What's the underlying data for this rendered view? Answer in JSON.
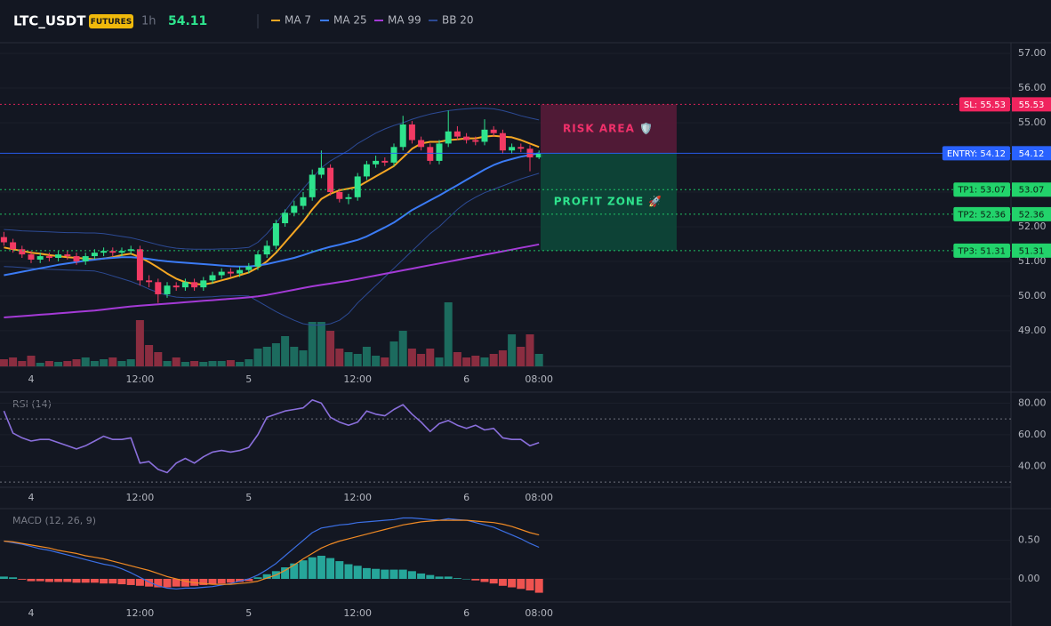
{
  "chart_data": [
    {
      "type": "candlestick",
      "title": "LTC_USDT",
      "badge": "FUTURES",
      "interval": "1h",
      "last_price": 54.11,
      "categories": [
        null,
        null,
        null,
        "4",
        null,
        null,
        null,
        null,
        null,
        null,
        null,
        null,
        null,
        null,
        null,
        "12:00",
        null,
        null,
        null,
        null,
        null,
        null,
        null,
        null,
        null,
        null,
        null,
        "5",
        null,
        null,
        null,
        null,
        null,
        null,
        null,
        null,
        null,
        null,
        null,
        "12:00",
        null,
        null,
        null,
        null,
        null,
        null,
        null,
        null,
        null,
        null,
        null,
        "6",
        null,
        null,
        null,
        null,
        null,
        null,
        null,
        "08:00"
      ],
      "open": [
        51.7,
        51.55,
        51.35,
        51.2,
        51.05,
        51.15,
        51.1,
        51.2,
        51.15,
        51.0,
        51.15,
        51.25,
        51.3,
        51.25,
        51.3,
        51.35,
        50.45,
        50.4,
        50.05,
        50.3,
        50.25,
        50.4,
        50.25,
        50.45,
        50.6,
        50.7,
        50.65,
        50.75,
        50.85,
        51.2,
        51.45,
        52.1,
        52.4,
        52.6,
        52.85,
        53.5,
        53.7,
        53.0,
        52.8,
        52.85,
        53.45,
        53.8,
        53.9,
        53.85,
        54.3,
        54.95,
        54.5,
        54.3,
        53.9,
        54.4,
        54.75,
        54.6,
        54.5,
        54.45,
        54.8,
        54.7,
        54.2,
        54.3,
        54.25,
        54.0
      ],
      "high": [
        51.85,
        51.65,
        51.45,
        51.3,
        51.25,
        51.25,
        51.3,
        51.3,
        51.25,
        51.25,
        51.35,
        51.4,
        51.4,
        51.4,
        51.45,
        51.45,
        50.6,
        50.5,
        50.4,
        50.4,
        50.5,
        50.5,
        50.55,
        50.7,
        50.8,
        50.8,
        50.85,
        50.95,
        51.3,
        51.6,
        52.2,
        52.5,
        52.75,
        53.0,
        53.65,
        54.2,
        53.8,
        53.1,
        52.95,
        53.55,
        53.9,
        54.05,
        54.0,
        54.4,
        55.2,
        55.05,
        54.6,
        54.4,
        54.5,
        55.35,
        54.9,
        54.7,
        54.6,
        55.1,
        54.9,
        54.8,
        54.4,
        54.4,
        54.35,
        54.2
      ],
      "low": [
        51.45,
        51.25,
        51.1,
        50.95,
        50.95,
        51.0,
        51.0,
        51.05,
        50.9,
        50.9,
        51.05,
        51.15,
        51.15,
        51.15,
        51.2,
        50.3,
        50.25,
        49.8,
        49.95,
        50.15,
        50.15,
        50.15,
        50.15,
        50.35,
        50.5,
        50.55,
        50.55,
        50.65,
        50.75,
        51.1,
        51.35,
        52.0,
        52.3,
        52.5,
        52.75,
        53.4,
        52.9,
        52.7,
        52.65,
        52.75,
        53.35,
        53.7,
        53.75,
        53.75,
        54.2,
        54.4,
        54.2,
        53.8,
        53.8,
        54.3,
        54.5,
        54.4,
        54.35,
        54.35,
        54.6,
        54.1,
        54.1,
        54.15,
        53.6,
        53.95
      ],
      "close": [
        51.55,
        51.35,
        51.2,
        51.05,
        51.15,
        51.1,
        51.2,
        51.15,
        51.0,
        51.15,
        51.25,
        51.3,
        51.25,
        51.3,
        51.35,
        50.45,
        50.4,
        50.05,
        50.3,
        50.25,
        50.4,
        50.25,
        50.45,
        50.6,
        50.7,
        50.65,
        50.75,
        50.85,
        51.2,
        51.45,
        52.1,
        52.4,
        52.6,
        52.85,
        53.5,
        53.7,
        53.0,
        52.8,
        52.85,
        53.45,
        53.8,
        53.9,
        53.85,
        54.3,
        54.95,
        54.5,
        54.3,
        53.9,
        54.4,
        54.75,
        54.6,
        54.5,
        54.45,
        54.8,
        54.7,
        54.2,
        54.3,
        54.25,
        54.0,
        54.11
      ],
      "volume": [
        8,
        10,
        6,
        12,
        4,
        6,
        5,
        6,
        8,
        10,
        6,
        8,
        10,
        6,
        8,
        52,
        24,
        16,
        6,
        10,
        5,
        6,
        5,
        6,
        6,
        7,
        5,
        8,
        20,
        22,
        26,
        34,
        22,
        18,
        50,
        50,
        40,
        20,
        16,
        14,
        22,
        12,
        10,
        28,
        40,
        20,
        14,
        20,
        10,
        72,
        16,
        10,
        12,
        10,
        14,
        18,
        36,
        22,
        36,
        14
      ],
      "up_color": "#2ee38d",
      "down_color": "#f23a63",
      "volume_up_color": "#1c6b5e",
      "volume_down_color": "#8a2d40",
      "series": [
        {
          "name": "MA 7",
          "color": "#f5a623",
          "values": [
            51.4,
            51.35,
            51.3,
            51.25,
            51.22,
            51.18,
            51.15,
            51.12,
            51.1,
            51.08,
            51.06,
            51.08,
            51.12,
            51.18,
            51.22,
            51.12,
            50.98,
            50.82,
            50.65,
            50.5,
            50.4,
            50.35,
            50.33,
            50.38,
            50.45,
            50.52,
            50.6,
            50.68,
            50.82,
            51.0,
            51.25,
            51.55,
            51.85,
            52.15,
            52.5,
            52.8,
            52.95,
            53.05,
            53.1,
            53.15,
            53.3,
            53.45,
            53.6,
            53.75,
            54.0,
            54.25,
            54.4,
            54.45,
            54.45,
            54.5,
            54.52,
            54.55,
            54.55,
            54.6,
            54.62,
            54.6,
            54.58,
            54.5,
            54.4,
            54.3
          ]
        },
        {
          "name": "MA 25",
          "color": "#3b7bf5",
          "values": [
            50.6,
            50.65,
            50.7,
            50.75,
            50.8,
            50.85,
            50.9,
            50.94,
            50.98,
            51.02,
            51.05,
            51.08,
            51.1,
            51.12,
            51.12,
            51.1,
            51.07,
            51.03,
            51.0,
            50.98,
            50.96,
            50.94,
            50.92,
            50.9,
            50.88,
            50.86,
            50.85,
            50.85,
            50.88,
            50.92,
            50.98,
            51.04,
            51.1,
            51.18,
            51.27,
            51.35,
            51.42,
            51.48,
            51.55,
            51.62,
            51.72,
            51.85,
            51.98,
            52.12,
            52.3,
            52.48,
            52.62,
            52.76,
            52.9,
            53.05,
            53.2,
            53.35,
            53.5,
            53.65,
            53.78,
            53.88,
            53.95,
            54.02,
            54.07,
            54.12
          ]
        },
        {
          "name": "MA 99",
          "color": "#a43ad6",
          "values": [
            49.38,
            49.4,
            49.42,
            49.44,
            49.46,
            49.48,
            49.5,
            49.52,
            49.54,
            49.56,
            49.58,
            49.61,
            49.64,
            49.67,
            49.7,
            49.72,
            49.74,
            49.76,
            49.78,
            49.8,
            49.82,
            49.84,
            49.86,
            49.88,
            49.9,
            49.92,
            49.94,
            49.96,
            49.99,
            50.03,
            50.08,
            50.13,
            50.18,
            50.23,
            50.28,
            50.32,
            50.36,
            50.4,
            50.44,
            50.49,
            50.54,
            50.59,
            50.64,
            50.69,
            50.74,
            50.79,
            50.84,
            50.89,
            50.94,
            50.99,
            51.04,
            51.09,
            51.14,
            51.19,
            51.24,
            51.29,
            51.34,
            51.39,
            51.44,
            51.49
          ]
        },
        {
          "name": "BB 20",
          "color": "#2c4a94",
          "upper": [
            51.92,
            51.9,
            51.88,
            51.87,
            51.86,
            51.85,
            51.84,
            51.83,
            51.83,
            51.82,
            51.82,
            51.8,
            51.76,
            51.72,
            51.68,
            51.62,
            51.55,
            51.48,
            51.42,
            51.38,
            51.36,
            51.35,
            51.35,
            51.35,
            51.36,
            51.36,
            51.38,
            51.4,
            51.55,
            51.8,
            52.1,
            52.45,
            52.8,
            53.1,
            53.4,
            53.7,
            53.9,
            54.05,
            54.2,
            54.4,
            54.55,
            54.7,
            54.82,
            54.92,
            55.0,
            55.1,
            55.18,
            55.25,
            55.3,
            55.35,
            55.38,
            55.4,
            55.42,
            55.42,
            55.4,
            55.35,
            55.28,
            55.2,
            55.14,
            55.08
          ],
          "lower": [
            50.85,
            50.84,
            50.82,
            50.8,
            50.78,
            50.77,
            50.76,
            50.75,
            50.74,
            50.73,
            50.72,
            50.66,
            50.58,
            50.5,
            50.42,
            50.32,
            50.2,
            50.1,
            50.02,
            49.97,
            49.95,
            49.96,
            49.97,
            49.98,
            50.0,
            50.0,
            50.01,
            50.0,
            49.85,
            49.7,
            49.55,
            49.42,
            49.3,
            49.2,
            49.16,
            49.16,
            49.2,
            49.3,
            49.5,
            49.8,
            50.05,
            50.3,
            50.55,
            50.8,
            51.05,
            51.3,
            51.55,
            51.8,
            52.0,
            52.25,
            52.5,
            52.7,
            52.85,
            52.98,
            53.08,
            53.18,
            53.28,
            53.38,
            53.46,
            53.54
          ]
        }
      ],
      "levels": [
        {
          "label": "SL: 55.53",
          "value": 55.53,
          "color": "#f0245e",
          "text_color": "#ffffff",
          "style": "dotted"
        },
        {
          "label": "ENTRY: 54.12",
          "value": 54.12,
          "color": "#2962ff",
          "text_color": "#ffffff",
          "style": "solid"
        },
        {
          "label": "TP1: 53.07",
          "value": 53.07,
          "color": "#22d36b",
          "text_color": "#0c1f14",
          "style": "dotted"
        },
        {
          "label": "TP2: 52.36",
          "value": 52.36,
          "color": "#22d36b",
          "text_color": "#0c1f14",
          "style": "dotted"
        },
        {
          "label": "TP3: 51.31",
          "value": 51.31,
          "color": "#22d36b",
          "text_color": "#0c1f14",
          "style": "dotted"
        }
      ],
      "zones": [
        {
          "label": "RISK AREA 🛡️",
          "range": [
            54.12,
            55.53
          ],
          "color": "#5c1b3a",
          "text_color": "#f0306a"
        },
        {
          "label": "PROFIT ZONE 🚀",
          "range": [
            51.31,
            54.12
          ],
          "color": "#0d4a3a",
          "text_color": "#2ee38d"
        }
      ],
      "ylim": [
        47.97,
        57.31
      ],
      "yticks": [
        {
          "value": 57,
          "label": "57.00"
        },
        {
          "value": 56,
          "label": "56.00"
        },
        {
          "value": 55,
          "label": "55.00"
        },
        {
          "value": 54,
          "label": "54.00"
        },
        {
          "value": 53,
          "label": "53.00"
        },
        {
          "value": 52,
          "label": "52.00"
        },
        {
          "value": 51,
          "label": "51.00"
        },
        {
          "value": 50,
          "label": "50.00"
        },
        {
          "value": 49,
          "label": "49.00"
        }
      ]
    },
    {
      "type": "line",
      "title": "RSI (14)",
      "color": "#8a6fdc",
      "values": [
        75,
        61,
        58,
        56,
        57,
        57,
        55,
        53,
        51,
        53,
        56,
        59,
        57,
        57,
        58,
        42,
        43,
        38,
        36,
        42,
        45,
        42,
        46,
        49,
        50,
        49,
        50,
        52,
        60,
        71,
        73,
        75,
        76,
        77,
        82,
        80,
        71,
        68,
        66,
        68,
        75,
        73,
        72,
        76,
        79,
        73,
        68,
        62,
        67,
        69,
        66,
        64,
        66,
        63,
        64,
        58,
        57,
        57,
        53,
        55
      ],
      "levels": [
        70,
        30
      ],
      "ylim": [
        26.7,
        86.4
      ],
      "yticks": [
        {
          "value": 80,
          "label": "80.00"
        },
        {
          "value": 60,
          "label": "60.00"
        },
        {
          "value": 40,
          "label": "40.00"
        }
      ]
    },
    {
      "type": "bar",
      "title": "MACD (12, 26, 9)",
      "pos_color": "#26a69a",
      "neg_color": "#ef5350",
      "values": [
        0.03,
        0.02,
        -0.01,
        -0.03,
        -0.03,
        -0.04,
        -0.04,
        -0.04,
        -0.05,
        -0.05,
        -0.05,
        -0.06,
        -0.06,
        -0.07,
        -0.08,
        -0.09,
        -0.1,
        -0.11,
        -0.11,
        -0.1,
        -0.1,
        -0.09,
        -0.08,
        -0.07,
        -0.06,
        -0.05,
        -0.04,
        -0.03,
        0.02,
        0.06,
        0.1,
        0.15,
        0.2,
        0.24,
        0.28,
        0.3,
        0.27,
        0.23,
        0.19,
        0.17,
        0.14,
        0.13,
        0.12,
        0.12,
        0.12,
        0.1,
        0.07,
        0.05,
        0.03,
        0.03,
        0.01,
        0.0,
        -0.02,
        -0.04,
        -0.06,
        -0.09,
        -0.11,
        -0.13,
        -0.15,
        -0.18
      ],
      "series": [
        {
          "color": "#3b6fe4",
          "values": [
            0.49,
            0.47,
            0.45,
            0.42,
            0.39,
            0.37,
            0.34,
            0.31,
            0.28,
            0.25,
            0.22,
            0.19,
            0.17,
            0.13,
            0.08,
            0.02,
            -0.04,
            -0.09,
            -0.12,
            -0.13,
            -0.12,
            -0.12,
            -0.11,
            -0.1,
            -0.08,
            -0.06,
            -0.03,
            0.0,
            0.05,
            0.12,
            0.2,
            0.3,
            0.4,
            0.5,
            0.6,
            0.66,
            0.68,
            0.7,
            0.71,
            0.73,
            0.74,
            0.75,
            0.76,
            0.77,
            0.79,
            0.79,
            0.78,
            0.77,
            0.76,
            0.78,
            0.77,
            0.76,
            0.73,
            0.7,
            0.67,
            0.62,
            0.57,
            0.52,
            0.46,
            0.41
          ]
        },
        {
          "color": "#f08a24",
          "values": [
            0.49,
            0.48,
            0.46,
            0.44,
            0.42,
            0.4,
            0.37,
            0.35,
            0.33,
            0.3,
            0.28,
            0.26,
            0.23,
            0.2,
            0.17,
            0.14,
            0.11,
            0.07,
            0.03,
            0.0,
            -0.03,
            -0.05,
            -0.06,
            -0.07,
            -0.07,
            -0.07,
            -0.06,
            -0.05,
            -0.03,
            0.01,
            0.05,
            0.11,
            0.18,
            0.26,
            0.33,
            0.4,
            0.45,
            0.49,
            0.52,
            0.55,
            0.58,
            0.61,
            0.64,
            0.67,
            0.7,
            0.72,
            0.74,
            0.75,
            0.76,
            0.76,
            0.76,
            0.76,
            0.75,
            0.74,
            0.73,
            0.71,
            0.68,
            0.64,
            0.6,
            0.57
          ]
        }
      ],
      "ylim": [
        -0.3,
        0.9
      ],
      "yticks": [
        {
          "value": 0.5,
          "label": "0.50"
        },
        {
          "value": 0,
          "label": "0.00"
        }
      ]
    }
  ]
}
